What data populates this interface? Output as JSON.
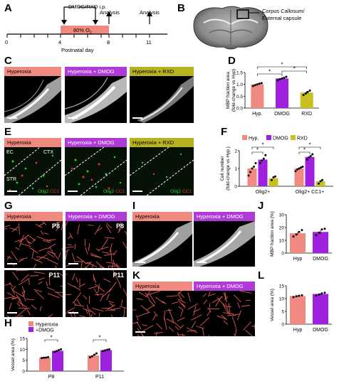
{
  "panels": [
    "A",
    "B",
    "C",
    "D",
    "E",
    "F",
    "G",
    "H",
    "I",
    "J",
    "K",
    "L"
  ],
  "timeline": {
    "treatment": "DMOG/RXD i.p.",
    "analysis1": "Analysis",
    "analysis2": "Analysis",
    "o2_label": "80% O",
    "o2_sub": "2",
    "xlabel": "Postnatal day",
    "ticks": [
      "0",
      "4",
      "8",
      "11"
    ]
  },
  "brain": {
    "label": "Corpus Callosum/\nExternal capsule"
  },
  "groups": {
    "hyperoxia": "Hyperoxia",
    "hyp_dmog": "Hyperoxia + DMOG",
    "hyp_rxd": "Hyperoxia + RXD"
  },
  "panelE": {
    "regions": [
      "EC",
      "CTX",
      "STR"
    ],
    "stain1": "Olig2",
    "stain2": "CC1"
  },
  "panelG": {
    "ages": [
      "P8",
      "P8",
      "P11",
      "P11"
    ]
  },
  "colors": {
    "hyp": "#f08a80",
    "dmog": "#a020e0",
    "rxd": "#c8c020"
  },
  "chart_data": [
    {
      "id": "D",
      "type": "bar",
      "categories": [
        "Hyp.",
        "DMOG",
        "RXD"
      ],
      "values": [
        1.0,
        1.25,
        0.65
      ],
      "points": [
        [
          0.93,
          0.97,
          1.0,
          1.03,
          1.05
        ],
        [
          1.17,
          1.22,
          1.25,
          1.28,
          1.32
        ],
        [
          0.55,
          0.62,
          0.68,
          0.74
        ]
      ],
      "errors": [
        0.05,
        0.05,
        0.07
      ],
      "ylabel": "MBP fraction area\n(fold-change vs Hyp)",
      "ylim": [
        0,
        1.5
      ],
      "yticks": [
        "0.0",
        "0.5",
        "1.0",
        "1.5"
      ],
      "significance": [
        "*",
        "*",
        "*"
      ]
    },
    {
      "id": "F",
      "type": "bar",
      "categories": [
        "Olig2+",
        "Olig2+ CC1+"
      ],
      "series": [
        {
          "name": "Hyp.",
          "values": [
            1.0,
            1.0
          ],
          "points": [
            [
              0.6,
              0.8,
              1.0,
              1.1,
              1.3
            ],
            [
              0.85,
              0.95,
              1.0,
              1.05,
              1.1
            ]
          ]
        },
        {
          "name": "DMOG",
          "values": [
            1.5,
            1.65
          ],
          "points": [
            [
              1.3,
              1.45,
              1.55,
              1.75
            ],
            [
              1.5,
              1.62,
              1.7,
              1.8
            ]
          ]
        },
        {
          "name": "RXD",
          "values": [
            0.45,
            0.28
          ],
          "points": [
            [
              0.35,
              0.5,
              0.55
            ],
            [
              0.15,
              0.28,
              0.35
            ]
          ]
        }
      ],
      "ylabel": "Cell number\n(fold-change vs Hyp.)",
      "ylim": [
        0,
        2
      ],
      "yticks": [
        "0",
        "1",
        "2"
      ],
      "significance": [
        "*",
        "*",
        "*",
        "*"
      ]
    },
    {
      "id": "H",
      "type": "bar",
      "categories": [
        "P8",
        "P11"
      ],
      "series": [
        {
          "name": "Hyperoxia",
          "values": [
            6.2,
            7.2
          ],
          "points": [
            [
              6.0,
              6.1,
              6.2,
              6.4
            ],
            [
              6.3,
              6.8,
              7.5,
              8.1
            ]
          ]
        },
        {
          "name": "+DMOG",
          "values": [
            9.3,
            9.6
          ],
          "points": [
            [
              8.8,
              9.2,
              9.6,
              10.0
            ],
            [
              9.2,
              9.5,
              9.8,
              10.0
            ]
          ]
        }
      ],
      "ylabel": "Vessel area (%)",
      "ylim": [
        0,
        15
      ],
      "yticks": [
        "0",
        "5",
        "10",
        "15"
      ],
      "significance": [
        "*",
        "*"
      ]
    },
    {
      "id": "J",
      "type": "bar",
      "categories": [
        "Hyp",
        "DMOG"
      ],
      "values": [
        15.5,
        16.5
      ],
      "points": [
        [
          13.0,
          14.5,
          16.5,
          18.0
        ],
        [
          14.0,
          16.0,
          18.5,
          19.0
        ]
      ],
      "errors": [
        1.2,
        1.5
      ],
      "ylabel": "MBP fraction area (%)",
      "ylim": [
        0,
        30
      ],
      "yticks": [
        "0",
        "10",
        "20",
        "30"
      ]
    },
    {
      "id": "L",
      "type": "bar",
      "categories": [
        "Hyp",
        "DMOG"
      ],
      "values": [
        11.0,
        11.8
      ],
      "points": [
        [
          10.6,
          10.9,
          11.1,
          11.3
        ],
        [
          11.2,
          11.6,
          12.0,
          12.3
        ]
      ],
      "errors": [
        0.3,
        0.3
      ],
      "ylabel": "Vessel area (%)",
      "ylim": [
        0,
        15
      ],
      "yticks": [
        "0",
        "5",
        "10",
        "15"
      ]
    }
  ]
}
